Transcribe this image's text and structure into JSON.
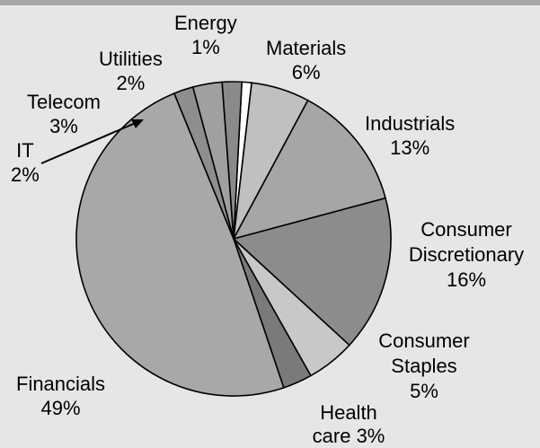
{
  "chart_data": {
    "type": "pie",
    "start_angle_deg": -87,
    "slices": [
      {
        "name": "Energy",
        "pct_label": "1%",
        "value": 1,
        "color": "#ffffff"
      },
      {
        "name": "Materials",
        "pct_label": "6%",
        "value": 6,
        "color": "#c0c0c0"
      },
      {
        "name": "Industrials",
        "pct_label": "13%",
        "value": 13,
        "color": "#a6a6a6"
      },
      {
        "name": "Consumer Discretionary",
        "pct_label": "16%",
        "value": 16,
        "color": "#8c8c8c"
      },
      {
        "name": "Consumer Staples",
        "pct_label": "5%",
        "value": 5,
        "color": "#c8c8c8"
      },
      {
        "name": "Health care",
        "pct_label": "3%",
        "value": 3,
        "color": "#7a7a7a"
      },
      {
        "name": "Financials",
        "pct_label": "49%",
        "value": 49,
        "color": "#a8a8a8"
      },
      {
        "name": "IT",
        "pct_label": "2%",
        "value": 2,
        "color": "#8e8e8e"
      },
      {
        "name": "Telecom",
        "pct_label": "3%",
        "value": 3,
        "color": "#a0a0a0"
      },
      {
        "name": "Utilities",
        "pct_label": "2%",
        "value": 2,
        "color": "#8a8a8a"
      }
    ]
  }
}
